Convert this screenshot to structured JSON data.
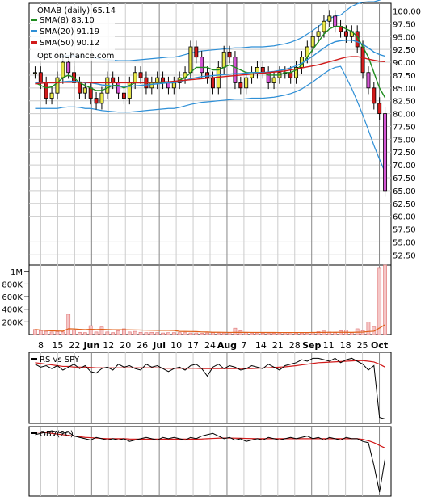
{
  "chart_data": [
    {
      "type": "candlestick",
      "panel": "price",
      "legend": {
        "title": "OMAB (daily) 65.14",
        "entries": [
          {
            "label": "SMA(8) 83.10",
            "color": "#1f8c1f"
          },
          {
            "label": "SMA(20) 91.19",
            "color": "#2e8fd6"
          },
          {
            "label": "SMA(50) 90.12",
            "color": "#d11a1a"
          }
        ],
        "source": "OptionChance.com"
      },
      "y_axis": {
        "ylim": [
          50.5,
          101.5
        ],
        "ticks": [
          "100.00",
          "97.50",
          "95.00",
          "92.50",
          "90.00",
          "87.50",
          "85.00",
          "82.50",
          "80.00",
          "77.50",
          "75.00",
          "72.50",
          "70.00",
          "67.50",
          "65.00",
          "62.50",
          "60.00",
          "57.50",
          "55.00",
          "52.50"
        ]
      },
      "series": [
        {
          "name": "price",
          "values": [
            88,
            86,
            83,
            84,
            87,
            90,
            88,
            86,
            84,
            85,
            83,
            82,
            84,
            87,
            86,
            84,
            83,
            86,
            88,
            87,
            85,
            86,
            87,
            86,
            85,
            86,
            87,
            88,
            93,
            91,
            88,
            87,
            85,
            89,
            92,
            91,
            86,
            85,
            87,
            88,
            89,
            88,
            86,
            87,
            88,
            88,
            87,
            89,
            91,
            93,
            95,
            96,
            98,
            99,
            97,
            96,
            95,
            96,
            93,
            88,
            85,
            82,
            80,
            65
          ]
        },
        {
          "name": "SMA(8)",
          "values": [
            86,
            85.5,
            85,
            85.2,
            86,
            87,
            87.5,
            87,
            86,
            85.5,
            85,
            84.5,
            84.5,
            85,
            85.5,
            85.5,
            85,
            85.5,
            86,
            86,
            86,
            86,
            86,
            86,
            86,
            86,
            86.5,
            87,
            88,
            89,
            89,
            89,
            88.5,
            88.5,
            89,
            89.5,
            89,
            88.5,
            88,
            88,
            88,
            88,
            87.5,
            87.5,
            87.5,
            88,
            88,
            88.5,
            89.5,
            91,
            92.5,
            94,
            95.5,
            96.5,
            97,
            97,
            96.5,
            96,
            95,
            93,
            91,
            88,
            85,
            83.1
          ]
        },
        {
          "name": "SMA(20)",
          "values": [
            86,
            86,
            86,
            86,
            86,
            86.2,
            86.3,
            86.3,
            86.2,
            86,
            86,
            85.8,
            85.6,
            85.5,
            85.4,
            85.3,
            85.3,
            85.3,
            85.4,
            85.5,
            85.6,
            85.7,
            85.8,
            85.9,
            86,
            86,
            86.2,
            86.5,
            86.8,
            87,
            87.2,
            87.3,
            87.4,
            87.5,
            87.6,
            87.7,
            87.8,
            87.8,
            87.9,
            88,
            88,
            88,
            88.1,
            88.2,
            88.4,
            88.6,
            88.9,
            89.3,
            89.8,
            90.5,
            91.2,
            92,
            92.8,
            93.5,
            94,
            94.2,
            94.3,
            94.3,
            94,
            93.5,
            92.8,
            92,
            91.5,
            91.19
          ]
        },
        {
          "name": "SMA(50)",
          "values": [
            85.8,
            85.9,
            86,
            86,
            86,
            86.1,
            86.1,
            86.1,
            86.1,
            86.1,
            86,
            86,
            86,
            86,
            86,
            86,
            86,
            86,
            86,
            86,
            86,
            86.1,
            86.1,
            86.2,
            86.2,
            86.3,
            86.4,
            86.5,
            86.6,
            86.7,
            86.8,
            86.9,
            87,
            87.1,
            87.2,
            87.3,
            87.4,
            87.5,
            87.6,
            87.7,
            87.8,
            87.9,
            88,
            88.1,
            88.2,
            88.3,
            88.5,
            88.7,
            88.9,
            89.1,
            89.3,
            89.5,
            89.8,
            90.1,
            90.4,
            90.7,
            91,
            91.1,
            91.1,
            90.9,
            90.6,
            90.4,
            90.2,
            90.12
          ]
        }
      ],
      "x_axis": {
        "labels": [
          "8",
          "15",
          "22",
          "Jun",
          "12",
          "20",
          "26",
          "Jul",
          "10",
          "17",
          "24",
          "Aug",
          "7",
          "14",
          "21",
          "28",
          "Sep",
          "11",
          "18",
          "25",
          "Oct"
        ]
      }
    },
    {
      "type": "bar",
      "panel": "volume",
      "y_axis": {
        "ticks": [
          "1M",
          "800K",
          "600K",
          "400K",
          "200K"
        ],
        "ylim": [
          0,
          1100000
        ]
      },
      "values": [
        80000,
        60000,
        50000,
        40000,
        45000,
        40000,
        320000,
        70000,
        35000,
        30000,
        140000,
        40000,
        120000,
        40000,
        30000,
        60000,
        90000,
        40000,
        50000,
        35000,
        30000,
        35000,
        30000,
        25000,
        30000,
        30000,
        30000,
        30000,
        25000,
        25000,
        20000,
        25000,
        30000,
        25000,
        25000,
        30000,
        100000,
        60000,
        30000,
        25000,
        25000,
        20000,
        25000,
        20000,
        25000,
        30000,
        30000,
        25000,
        25000,
        25000,
        30000,
        45000,
        55000,
        40000,
        30000,
        60000,
        70000,
        35000,
        90000,
        60000,
        200000,
        120000,
        1050000,
        1100000
      ]
    },
    {
      "type": "line",
      "panel": "relative-strength",
      "title": "RS vs SPY",
      "series": [
        {
          "name": "RS",
          "values": [
            0.6,
            0.4,
            0.5,
            0.3,
            0.5,
            0.2,
            0.4,
            0.6,
            0.3,
            0.5,
            0.1,
            0.0,
            0.3,
            0.4,
            0.2,
            0.6,
            0.4,
            0.5,
            0.3,
            0.2,
            0.6,
            0.4,
            0.5,
            0.3,
            0.1,
            0.3,
            0.4,
            0.2,
            0.5,
            0.6,
            0.3,
            -0.2,
            0.4,
            0.6,
            0.3,
            0.5,
            0.4,
            0.2,
            0.3,
            0.5,
            0.4,
            0.3,
            0.6,
            0.4,
            0.2,
            0.5,
            0.6,
            0.7,
            0.9,
            0.8,
            1.0,
            1.0,
            0.9,
            0.8,
            1.0,
            0.7,
            0.9,
            1.0,
            0.8,
            0.6,
            0.2,
            0.5,
            -3.0,
            -3.1
          ]
        },
        {
          "name": "RS average",
          "values": [
            0.7,
            0.65,
            0.6,
            0.55,
            0.5,
            0.45,
            0.45,
            0.4,
            0.4,
            0.4,
            0.38,
            0.35,
            0.35,
            0.35,
            0.35,
            0.35,
            0.35,
            0.35,
            0.35,
            0.35,
            0.35,
            0.35,
            0.35,
            0.33,
            0.32,
            0.32,
            0.32,
            0.32,
            0.32,
            0.32,
            0.3,
            0.3,
            0.3,
            0.3,
            0.3,
            0.3,
            0.3,
            0.3,
            0.3,
            0.3,
            0.32,
            0.34,
            0.36,
            0.38,
            0.4,
            0.42,
            0.46,
            0.5,
            0.55,
            0.6,
            0.65,
            0.7,
            0.72,
            0.74,
            0.76,
            0.78,
            0.8,
            0.82,
            0.84,
            0.84,
            0.8,
            0.75,
            0.6,
            0.4
          ]
        }
      ]
    },
    {
      "type": "line",
      "panel": "obv",
      "title": "OBV(20)",
      "series": [
        {
          "name": "OBV",
          "values": [
            0.8,
            0.9,
            1.0,
            1.1,
            1.0,
            0.9,
            1.0,
            0.7,
            0.6,
            0.5,
            0.4,
            0.6,
            0.5,
            0.4,
            0.5,
            0.4,
            0.5,
            0.3,
            0.4,
            0.5,
            0.6,
            0.5,
            0.4,
            0.6,
            0.5,
            0.6,
            0.5,
            0.4,
            0.6,
            0.5,
            0.7,
            0.8,
            0.9,
            0.7,
            0.5,
            0.6,
            0.4,
            0.5,
            0.3,
            0.4,
            0.5,
            0.4,
            0.6,
            0.5,
            0.4,
            0.5,
            0.6,
            0.5,
            0.6,
            0.7,
            0.5,
            0.6,
            0.4,
            0.6,
            0.5,
            0.4,
            0.6,
            0.5,
            0.5,
            0.3,
            0.2,
            -1.5,
            -3.5,
            -1.0
          ]
        },
        {
          "name": "OBV average",
          "values": [
            1.0,
            1.0,
            0.95,
            0.9,
            0.85,
            0.8,
            0.75,
            0.7,
            0.65,
            0.6,
            0.58,
            0.55,
            0.52,
            0.5,
            0.5,
            0.5,
            0.5,
            0.48,
            0.47,
            0.47,
            0.47,
            0.47,
            0.47,
            0.47,
            0.47,
            0.47,
            0.47,
            0.47,
            0.47,
            0.47,
            0.48,
            0.5,
            0.52,
            0.54,
            0.55,
            0.55,
            0.54,
            0.53,
            0.52,
            0.51,
            0.5,
            0.5,
            0.5,
            0.5,
            0.5,
            0.5,
            0.5,
            0.5,
            0.5,
            0.5,
            0.5,
            0.5,
            0.5,
            0.5,
            0.5,
            0.5,
            0.5,
            0.5,
            0.5,
            0.45,
            0.35,
            0.2,
            0.0,
            -0.2
          ]
        }
      ]
    }
  ]
}
